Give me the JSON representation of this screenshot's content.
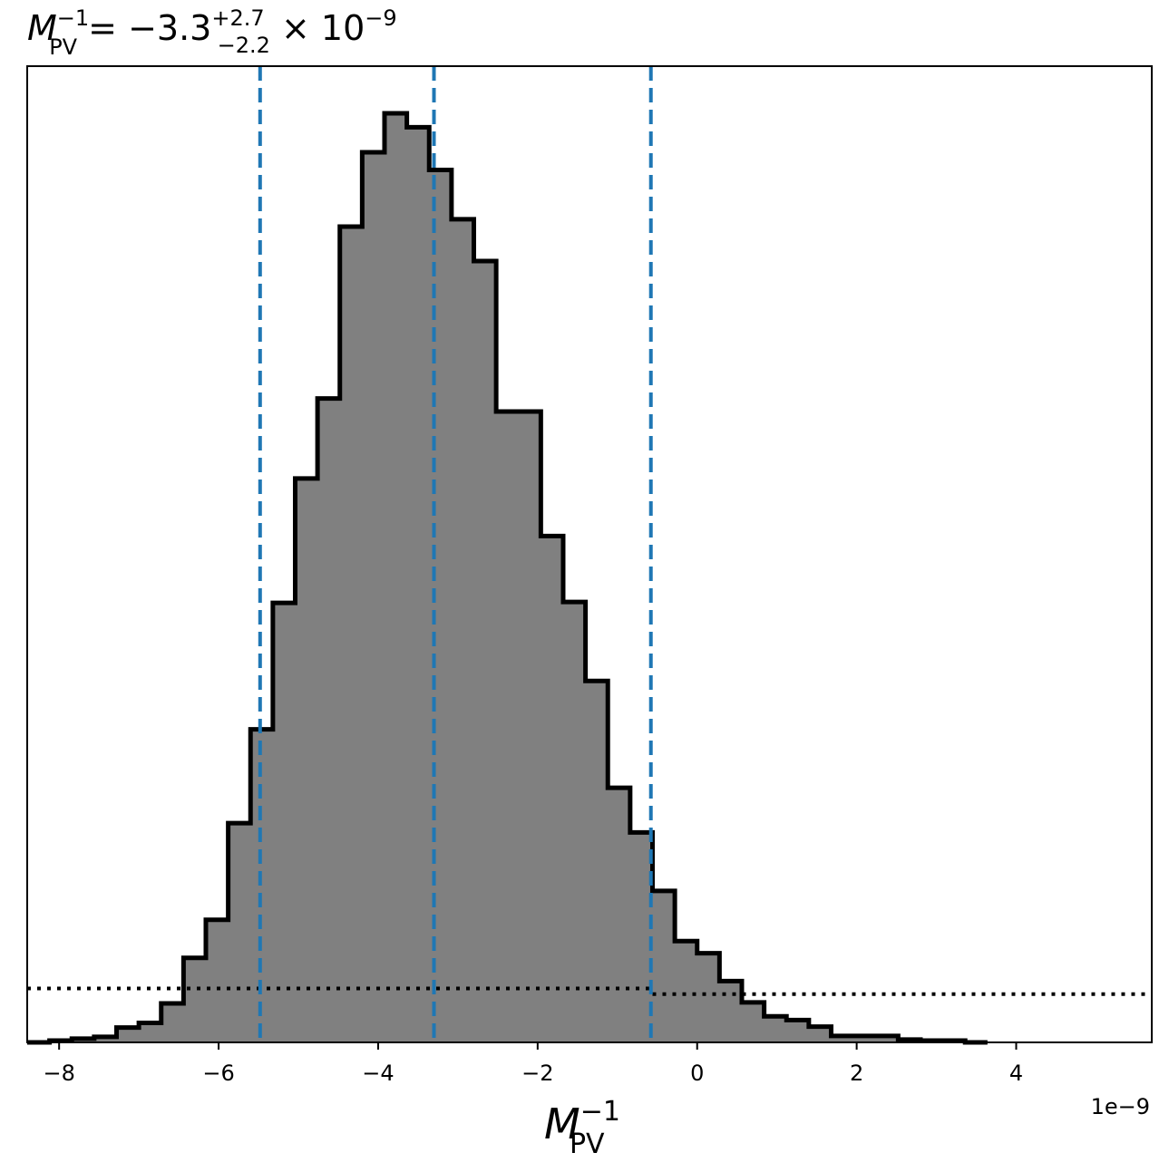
{
  "chart_data": {
    "type": "histogram",
    "title": {
      "symbol": "M",
      "sub": "PV",
      "sup": "−1",
      "equals": " = ",
      "value": "−3.3",
      "plus": "+2.7",
      "minus": "−2.2",
      "times": " × 10",
      "exp": "−9"
    },
    "xlabel": {
      "symbol": "M",
      "sub": "PV",
      "sup": "−1"
    },
    "x_offset_label": "1e−9",
    "xlim": [
      -8.4,
      5.7
    ],
    "ylim": [
      0,
      1.0
    ],
    "xticks": [
      {
        "value": -8,
        "label": "−8"
      },
      {
        "value": -6,
        "label": "−6"
      },
      {
        "value": -4,
        "label": "−4"
      },
      {
        "value": -2,
        "label": "−2"
      },
      {
        "value": 0,
        "label": "0"
      },
      {
        "value": 2,
        "label": "2"
      },
      {
        "value": 4,
        "label": "4"
      }
    ],
    "bin_edges": [
      -8.4,
      -8.12,
      -7.84,
      -7.56,
      -7.28,
      -7.0,
      -6.72,
      -6.44,
      -6.16,
      -5.88,
      -5.6,
      -5.32,
      -5.04,
      -4.76,
      -4.48,
      -4.2,
      -3.92,
      -3.64,
      -3.36,
      -3.08,
      -2.8,
      -2.52,
      -2.24,
      -1.96,
      -1.68,
      -1.4,
      -1.12,
      -0.84,
      -0.56,
      -0.28,
      0.0,
      0.28,
      0.56,
      0.84,
      1.12,
      1.4,
      1.68,
      1.96,
      2.24,
      2.52,
      2.8,
      3.08,
      3.36,
      3.64
    ],
    "counts": [
      0.0,
      0.002,
      0.004,
      0.006,
      0.016,
      0.021,
      0.042,
      0.091,
      0.132,
      0.236,
      0.337,
      0.473,
      0.607,
      0.693,
      0.878,
      0.958,
      1.0,
      0.985,
      0.939,
      0.886,
      0.841,
      0.679,
      0.679,
      0.545,
      0.474,
      0.389,
      0.274,
      0.226,
      0.163,
      0.109,
      0.096,
      0.066,
      0.043,
      0.028,
      0.024,
      0.017,
      0.007,
      0.007,
      0.007,
      0.003,
      0.002,
      0.002,
      0.0
    ],
    "fill_color": "#808080",
    "edge_color": "#000000",
    "vlines": {
      "color": "#1f77b4",
      "style": "dashed",
      "x": [
        -5.48,
        -3.3,
        -0.58
      ]
    },
    "prior_line": {
      "style": "dotted",
      "color": "#000000",
      "segments": [
        {
          "x": [
            -8.4,
            -0.56
          ],
          "y": 0.058
        },
        {
          "x": [
            -0.56,
            5.7
          ],
          "y": 0.052
        }
      ]
    },
    "grid": false,
    "legend": "none"
  }
}
